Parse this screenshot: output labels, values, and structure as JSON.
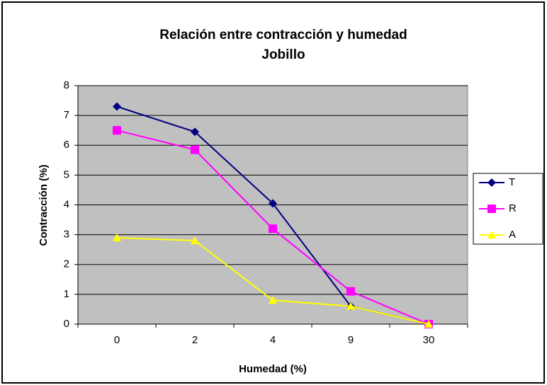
{
  "chart_data": {
    "type": "line",
    "title": [
      "Relación entre contracción y humedad",
      "Jobillo"
    ],
    "x_label": "Humedad (%)",
    "y_label": "Contracción (%)",
    "categories": [
      "0",
      "2",
      "4",
      "9",
      "30"
    ],
    "series": [
      {
        "name": "T",
        "color": "#000080",
        "marker": "diamond",
        "values": [
          7.3,
          6.45,
          4.05,
          0.6,
          0
        ]
      },
      {
        "name": "R",
        "color": "#ff00ff",
        "marker": "square",
        "values": [
          6.5,
          5.85,
          3.2,
          1.1,
          0
        ]
      },
      {
        "name": "A",
        "color": "#ffff00",
        "marker": "triangle",
        "values": [
          2.9,
          2.8,
          0.8,
          0.6,
          0
        ]
      }
    ],
    "ylim": [
      0,
      8
    ],
    "yticks": [
      0,
      1,
      2,
      3,
      4,
      5,
      6,
      7,
      8
    ],
    "grid": true,
    "legend": "right"
  }
}
